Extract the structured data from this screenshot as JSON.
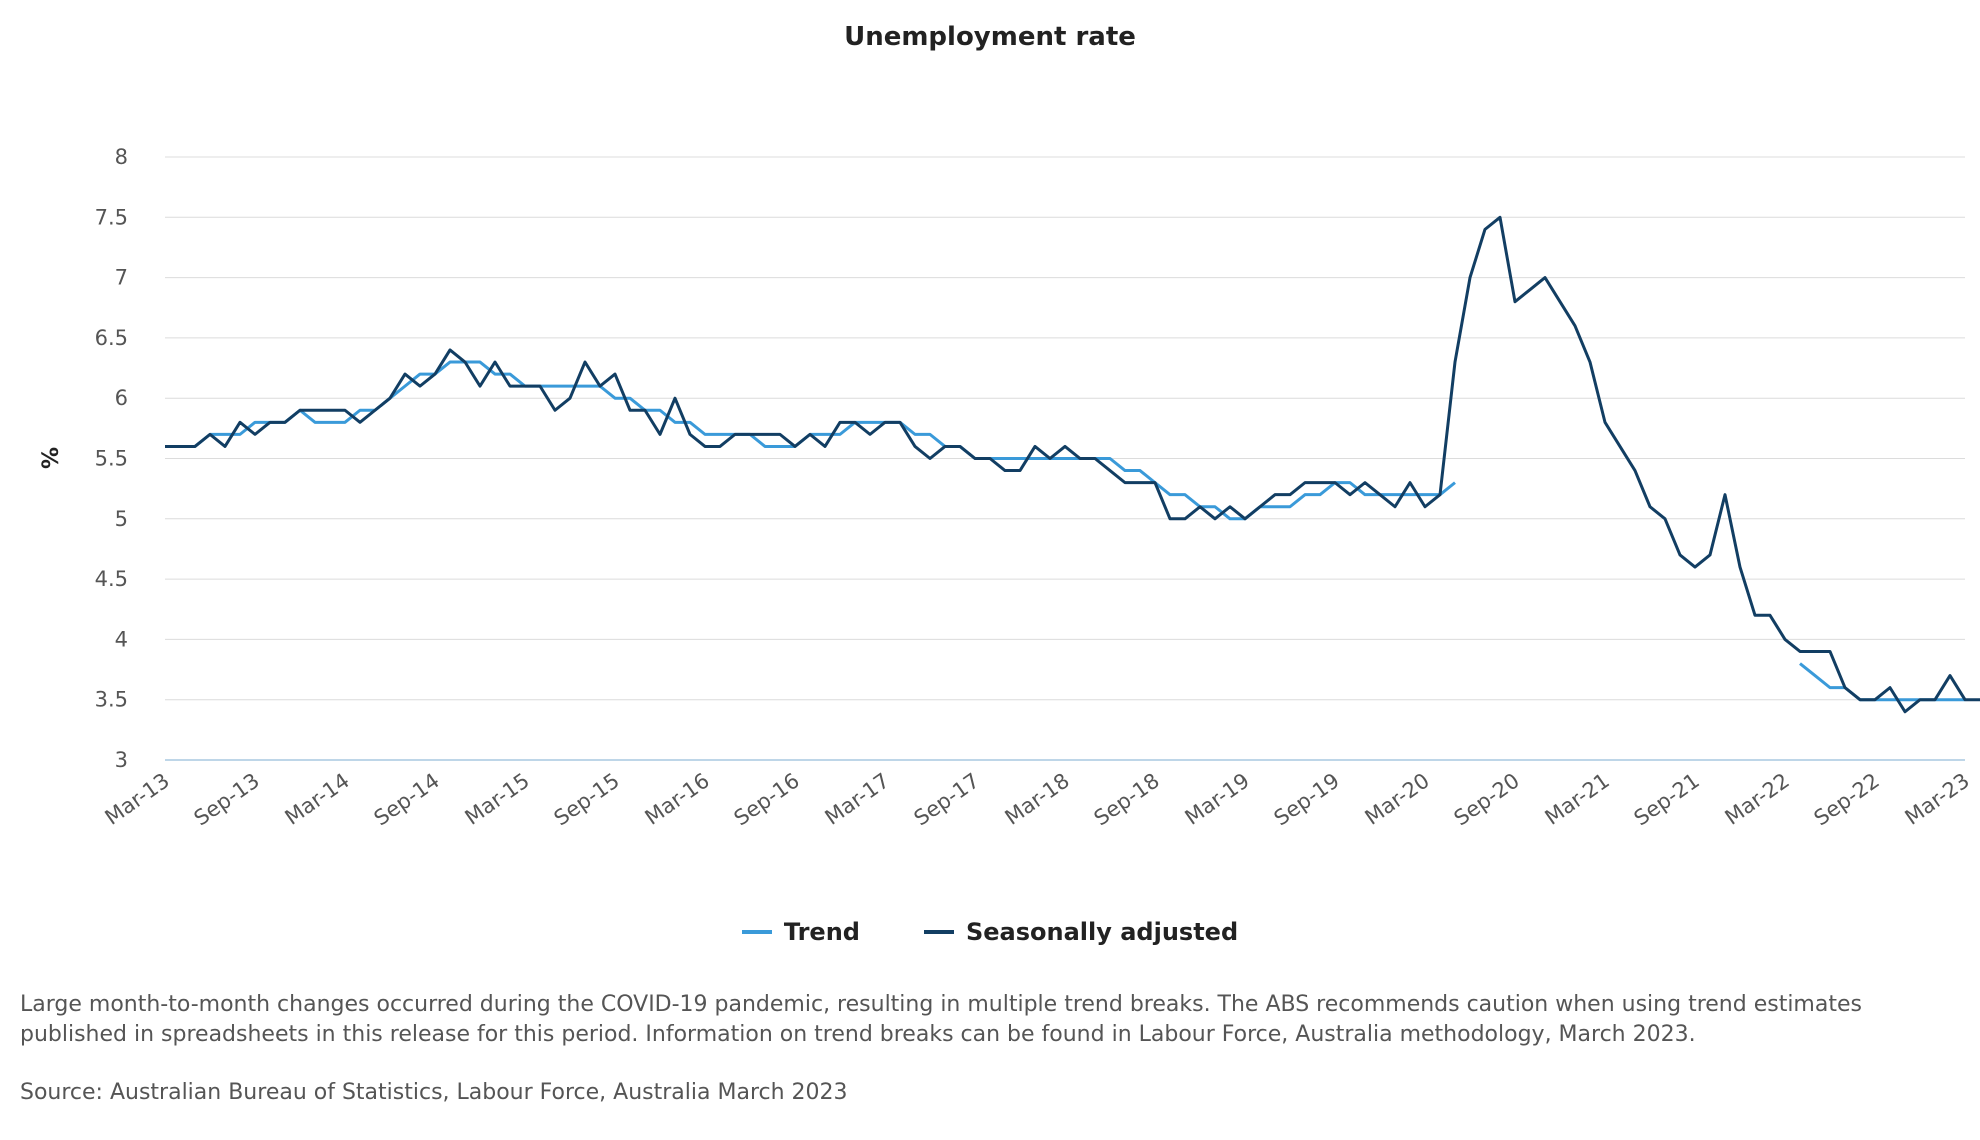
{
  "chart_data": {
    "type": "line",
    "title": "Unemployment rate",
    "xlabel": "",
    "ylabel": "%",
    "ylim": [
      3,
      8
    ],
    "yticks": [
      "3",
      "3.5",
      "4",
      "4.5",
      "5",
      "5.5",
      "6",
      "6.5",
      "7",
      "7.5",
      "8"
    ],
    "ytick_values": [
      3,
      3.5,
      4,
      4.5,
      5,
      5.5,
      6,
      6.5,
      7,
      7.5,
      8
    ],
    "xticks": [
      "Mar-13",
      "Sep-13",
      "Mar-14",
      "Sep-14",
      "Mar-15",
      "Sep-15",
      "Mar-16",
      "Sep-16",
      "Mar-17",
      "Sep-17",
      "Mar-18",
      "Sep-18",
      "Mar-19",
      "Sep-19",
      "Mar-20",
      "Sep-20",
      "Mar-21",
      "Sep-21",
      "Mar-22",
      "Sep-22",
      "Mar-23"
    ],
    "x_start": "Mar-13",
    "x_count": 121,
    "grid": true,
    "legend_position": "bottom-center",
    "series": [
      {
        "name": "Trend",
        "color": "#3a9ad9",
        "values": [
          5.6,
          5.6,
          5.6,
          5.7,
          5.7,
          5.7,
          5.8,
          5.8,
          5.8,
          5.9,
          5.8,
          5.8,
          5.8,
          5.9,
          5.9,
          6.0,
          6.1,
          6.2,
          6.2,
          6.3,
          6.3,
          6.3,
          6.2,
          6.2,
          6.1,
          6.1,
          6.1,
          6.1,
          6.1,
          6.1,
          6.0,
          6.0,
          5.9,
          5.9,
          5.8,
          5.8,
          5.7,
          5.7,
          5.7,
          5.7,
          5.6,
          5.6,
          5.6,
          5.7,
          5.7,
          5.7,
          5.8,
          5.8,
          5.8,
          5.8,
          5.7,
          5.7,
          5.6,
          5.6,
          5.5,
          5.5,
          5.5,
          5.5,
          5.5,
          5.5,
          5.5,
          5.5,
          5.5,
          5.5,
          5.4,
          5.4,
          5.3,
          5.2,
          5.2,
          5.1,
          5.1,
          5.0,
          5.0,
          5.1,
          5.1,
          5.1,
          5.2,
          5.2,
          5.3,
          5.3,
          5.2,
          5.2,
          5.2,
          5.2,
          5.2,
          5.2,
          5.3,
          null,
          null,
          null,
          null,
          null,
          null,
          null,
          null,
          null,
          null,
          null,
          null,
          null,
          null,
          null,
          null,
          null,
          null,
          null,
          null,
          null,
          null,
          3.8,
          3.7,
          3.6,
          3.6,
          3.5,
          3.5,
          3.5,
          3.5,
          3.5,
          3.5,
          3.5,
          3.5
        ]
      },
      {
        "name": "Seasonally adjusted",
        "color": "#123e63",
        "values": [
          5.6,
          5.6,
          5.6,
          5.7,
          5.6,
          5.8,
          5.7,
          5.8,
          5.8,
          5.9,
          5.9,
          5.9,
          5.9,
          5.8,
          5.9,
          6.0,
          6.2,
          6.1,
          6.2,
          6.4,
          6.3,
          6.1,
          6.3,
          6.1,
          6.1,
          6.1,
          5.9,
          6.0,
          6.3,
          6.1,
          6.2,
          5.9,
          5.9,
          5.7,
          6.0,
          5.7,
          5.6,
          5.6,
          5.7,
          5.7,
          5.7,
          5.7,
          5.6,
          5.7,
          5.6,
          5.8,
          5.8,
          5.7,
          5.8,
          5.8,
          5.6,
          5.5,
          5.6,
          5.6,
          5.5,
          5.5,
          5.4,
          5.4,
          5.6,
          5.5,
          5.6,
          5.5,
          5.5,
          5.4,
          5.3,
          5.3,
          5.3,
          5.0,
          5.0,
          5.1,
          5.0,
          5.1,
          5.0,
          5.1,
          5.2,
          5.2,
          5.3,
          5.3,
          5.3,
          5.2,
          5.3,
          5.2,
          5.1,
          5.3,
          5.1,
          5.2,
          6.3,
          7.0,
          7.4,
          7.5,
          6.8,
          6.9,
          7.0,
          6.8,
          6.6,
          6.3,
          5.8,
          5.6,
          5.4,
          5.1,
          5.0,
          4.7,
          4.6,
          4.7,
          5.2,
          4.6,
          4.2,
          4.2,
          4.0,
          3.9,
          3.9,
          3.9,
          3.6,
          3.5,
          3.5,
          3.6,
          3.4,
          3.5,
          3.5,
          3.7,
          3.5,
          3.5
        ]
      }
    ]
  },
  "legend": {
    "items": [
      "Trend",
      "Seasonally adjusted"
    ]
  },
  "note": "Large month-to-month changes occurred during the COVID-19 pandemic, resulting in multiple trend breaks. The ABS recommends caution when using trend estimates published in spreadsheets in this release for this period. Information on trend breaks can be found in Labour Force, Australia methodology, March 2023.",
  "source": "Source: Australian Bureau of Statistics, Labour Force, Australia March 2023"
}
